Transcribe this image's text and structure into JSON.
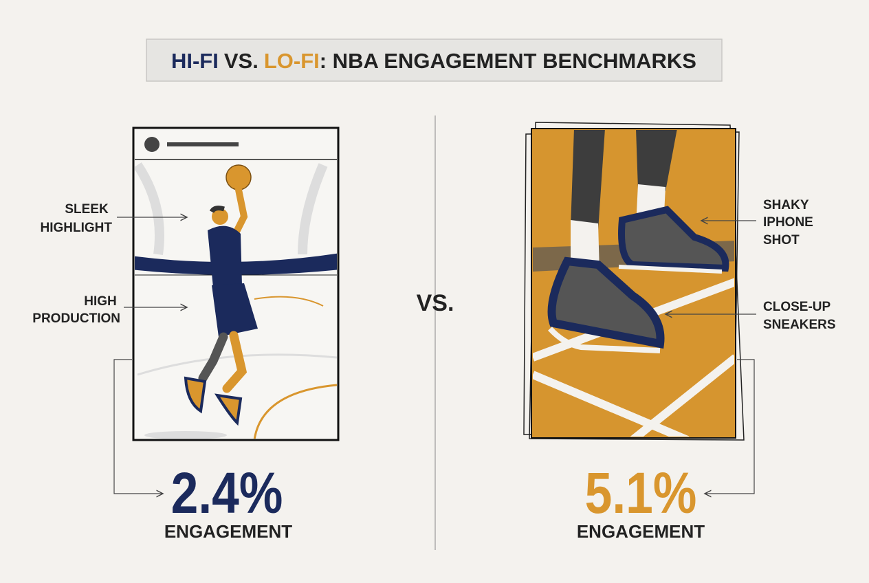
{
  "title": {
    "hi": "HI-FI",
    "vs": "VS.",
    "lo": "LO-FI",
    "rest": ": NBA ENGAGEMENT BENCHMARKS"
  },
  "left": {
    "labels": [
      [
        "SLEEK",
        "HIGHLIGHT"
      ],
      [
        "HIGH",
        "PRODUCTION"
      ]
    ],
    "stat": "2.4%",
    "stat_caption": "ENGAGEMENT"
  },
  "middle": "VS.",
  "right": {
    "labels": [
      [
        "SHAKY",
        "IPHONE",
        "SHOT"
      ],
      [
        "CLOSE-UP",
        "SNEAKERS"
      ]
    ],
    "stat": "5.1%",
    "stat_caption": "ENGAGEMENT"
  }
}
